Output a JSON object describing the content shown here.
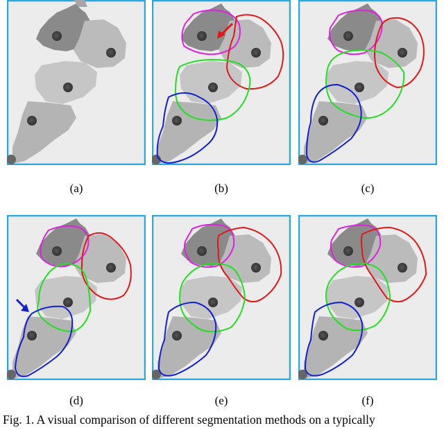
{
  "figure": {
    "panels": [
      {
        "label": "(a)",
        "contours": []
      },
      {
        "label": "(b)",
        "contours": [
          "magenta",
          "red",
          "green",
          "blue"
        ],
        "arrow": "red"
      },
      {
        "label": "(c)",
        "contours": [
          "magenta",
          "red",
          "green",
          "blue"
        ]
      },
      {
        "label": "(d)",
        "contours": [
          "magenta",
          "red",
          "green",
          "blue"
        ],
        "arrow": "blue"
      },
      {
        "label": "(e)",
        "contours": [
          "magenta",
          "red",
          "green",
          "blue"
        ]
      },
      {
        "label": "(f)",
        "contours": [
          "magenta",
          "red",
          "green",
          "blue"
        ]
      }
    ],
    "caption": "Fig. 1.  A visual comparison of different segmentation methods on a typically"
  },
  "colors": {
    "frame": "#2aa8e0",
    "background": "#ececec",
    "magenta": "#e020e0",
    "red": "#e01818",
    "green": "#20e020",
    "blue": "#1020d0",
    "nucleus": "#3a3a3a"
  }
}
